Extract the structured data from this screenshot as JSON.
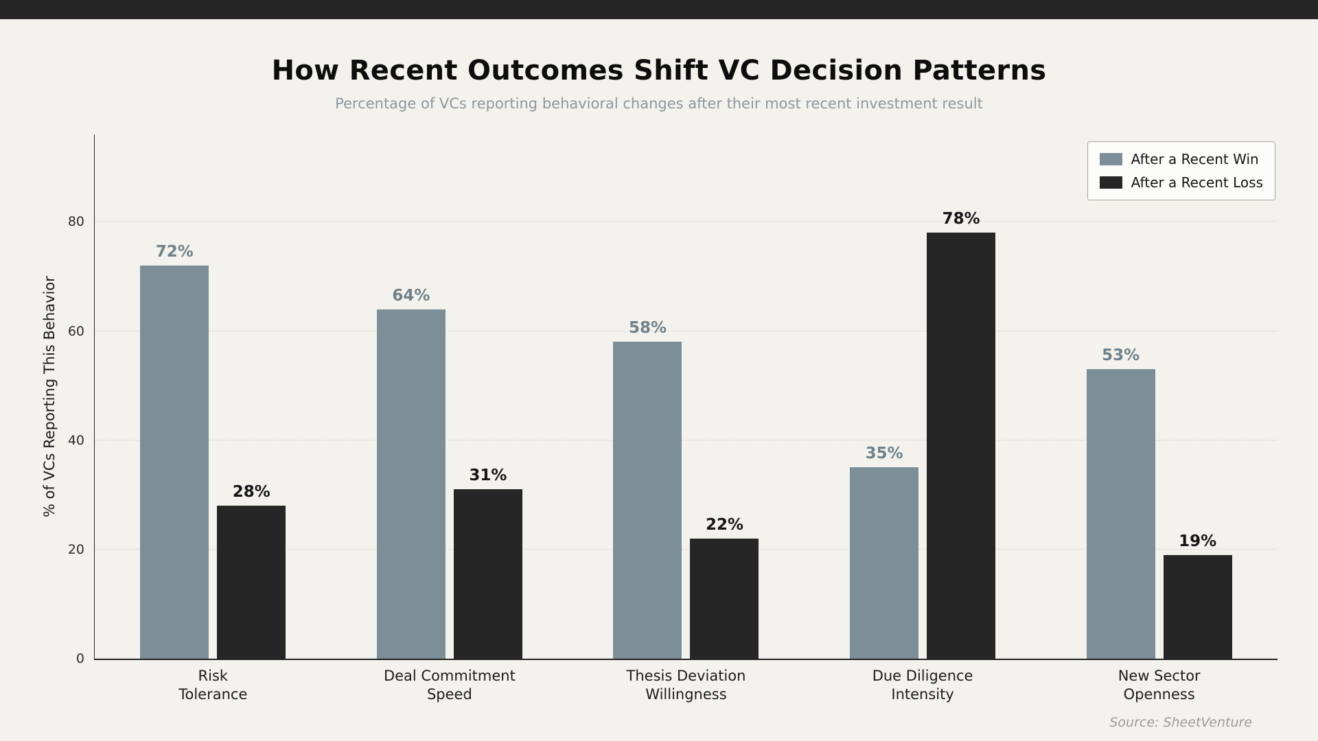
{
  "header": {
    "title": "How Recent Outcomes Shift VC Decision Patterns",
    "subtitle": "Percentage of VCs reporting behavioral changes after their most recent investment result"
  },
  "chart_data": {
    "type": "bar",
    "categories": [
      [
        "Risk",
        "Tolerance"
      ],
      [
        "Deal Commitment",
        "Speed"
      ],
      [
        "Thesis Deviation",
        "Willingness"
      ],
      [
        "Due Diligence",
        "Intensity"
      ],
      [
        "New Sector",
        "Openness"
      ]
    ],
    "series": [
      {
        "name": "After a Recent Win",
        "color": "#7c8f98",
        "label_color": "#6f828b",
        "values": [
          72,
          64,
          58,
          35,
          53
        ]
      },
      {
        "name": "After a Recent Loss",
        "color": "#262626",
        "label_color": "#161616",
        "values": [
          28,
          31,
          22,
          78,
          19
        ]
      }
    ],
    "value_suffix": "%",
    "ylabel": "% of VCs Reporting This Behavior",
    "yticks": [
      0,
      20,
      40,
      60,
      80
    ],
    "ylim": [
      0,
      96
    ],
    "grid": true,
    "legend_position": "top-right"
  },
  "footer": {
    "source": "Source: SheetVenture"
  }
}
